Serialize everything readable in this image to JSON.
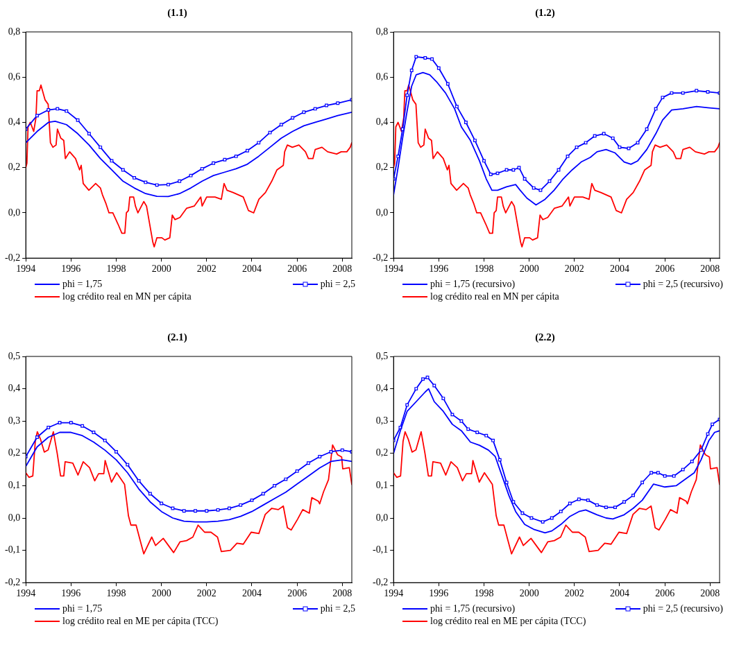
{
  "chart_data": [
    {
      "type": "line",
      "title": "(1.1)",
      "xlim": [
        1994,
        2008.42
      ],
      "xticks": [
        1994,
        1996,
        1998,
        2000,
        2002,
        2004,
        2006,
        2008
      ],
      "ylim": [
        -0.2,
        0.8
      ],
      "yticks": [
        {
          "value": -0.2,
          "label": "-0,2"
        },
        {
          "value": 0,
          "label": "0,0"
        },
        {
          "value": 0.2,
          "label": "0,2"
        },
        {
          "value": 0.4,
          "label": "0,4"
        },
        {
          "value": 0.6,
          "label": "0,6"
        },
        {
          "value": 0.8,
          "label": "0,8"
        }
      ],
      "grid": false,
      "legend": "bottom",
      "series": [
        {
          "name": "phi = 1,75",
          "color": "#0000ff",
          "marker": "none",
          "x": [
            1994.0,
            1994.5,
            1995.0,
            1995.3,
            1995.8,
            1996.3,
            1996.8,
            1997.3,
            1997.8,
            1998.3,
            1998.8,
            1999.3,
            1999.8,
            2000.3,
            2000.8,
            2001.3,
            2001.8,
            2002.3,
            2002.8,
            2003.3,
            2003.8,
            2004.3,
            2004.8,
            2005.3,
            2005.8,
            2006.3,
            2006.8,
            2007.3,
            2007.8,
            2008.42
          ],
          "values": [
            0.31,
            0.36,
            0.4,
            0.405,
            0.39,
            0.35,
            0.3,
            0.24,
            0.19,
            0.14,
            0.11,
            0.085,
            0.073,
            0.072,
            0.085,
            0.11,
            0.14,
            0.165,
            0.18,
            0.195,
            0.215,
            0.25,
            0.29,
            0.33,
            0.36,
            0.385,
            0.4,
            0.415,
            0.43,
            0.445
          ]
        },
        {
          "name": "phi = 2,5",
          "color": "#0000ff",
          "marker": "square",
          "x": [
            1994.0,
            1994.5,
            1995.0,
            1995.4,
            1995.8,
            1996.3,
            1996.8,
            1997.3,
            1997.8,
            1998.3,
            1998.8,
            1999.3,
            1999.8,
            2000.3,
            2000.8,
            2001.3,
            2001.8,
            2002.3,
            2002.8,
            2003.3,
            2003.8,
            2004.3,
            2004.8,
            2005.3,
            2005.8,
            2006.3,
            2006.8,
            2007.3,
            2007.8,
            2008.42
          ],
          "values": [
            0.37,
            0.43,
            0.455,
            0.46,
            0.45,
            0.41,
            0.35,
            0.29,
            0.23,
            0.19,
            0.155,
            0.135,
            0.123,
            0.125,
            0.14,
            0.165,
            0.195,
            0.22,
            0.235,
            0.25,
            0.275,
            0.31,
            0.355,
            0.39,
            0.42,
            0.445,
            0.46,
            0.475,
            0.485,
            0.5
          ]
        },
        {
          "name": "log crédito real en MN per cápita",
          "color": "#ff0000",
          "marker": "none",
          "x": [
            1994.0,
            1994.05,
            1994.1,
            1994.2,
            1994.35,
            1994.45,
            1994.5,
            1994.6,
            1994.67,
            1994.85,
            1994.99,
            1995.09,
            1995.2,
            1995.34,
            1995.4,
            1995.55,
            1995.68,
            1995.75,
            1995.94,
            1996.2,
            1996.38,
            1996.45,
            1996.54,
            1996.79,
            1997.09,
            1997.3,
            1997.39,
            1997.55,
            1997.68,
            1997.85,
            1998.08,
            1998.25,
            1998.38,
            1998.45,
            1998.54,
            1998.6,
            1998.77,
            1998.85,
            1998.96,
            1999.22,
            1999.34,
            1999.62,
            1999.68,
            1999.8,
            2000.02,
            2000.15,
            2000.37,
            2000.48,
            2000.6,
            2000.82,
            2001.11,
            2001.45,
            2001.74,
            2001.8,
            2002.0,
            2002.37,
            2002.65,
            2002.77,
            2002.9,
            2003.17,
            2003.62,
            2003.85,
            2004.08,
            2004.31,
            2004.6,
            2004.88,
            2005.11,
            2005.39,
            2005.45,
            2005.57,
            2005.79,
            2006.08,
            2006.37,
            2006.5,
            2006.7,
            2006.8,
            2007.1,
            2007.35,
            2007.75,
            2007.95,
            2008.2,
            2008.35,
            2008.42
          ],
          "values": [
            0.2,
            0.22,
            0.38,
            0.4,
            0.36,
            0.42,
            0.54,
            0.54,
            0.565,
            0.5,
            0.48,
            0.31,
            0.29,
            0.3,
            0.37,
            0.33,
            0.32,
            0.24,
            0.27,
            0.24,
            0.19,
            0.21,
            0.13,
            0.1,
            0.13,
            0.11,
            0.08,
            0.04,
            0.0,
            0.0,
            -0.05,
            -0.09,
            -0.09,
            0.0,
            0.01,
            0.07,
            0.07,
            0.03,
            0.0,
            0.05,
            0.03,
            -0.13,
            -0.15,
            -0.11,
            -0.11,
            -0.12,
            -0.11,
            -0.01,
            -0.03,
            -0.02,
            0.02,
            0.03,
            0.07,
            0.03,
            0.07,
            0.07,
            0.06,
            0.13,
            0.1,
            0.09,
            0.07,
            0.01,
            0.0,
            0.06,
            0.09,
            0.14,
            0.19,
            0.21,
            0.27,
            0.3,
            0.29,
            0.3,
            0.27,
            0.24,
            0.24,
            0.28,
            0.29,
            0.27,
            0.26,
            0.27,
            0.27,
            0.29,
            0.31
          ]
        }
      ]
    },
    {
      "type": "line",
      "title": "(1.2)",
      "xlim": [
        1994,
        2008.42
      ],
      "xticks": [
        1994,
        1996,
        1998,
        2000,
        2002,
        2004,
        2006,
        2008
      ],
      "ylim": [
        -0.2,
        0.8
      ],
      "yticks": [
        {
          "value": -0.2,
          "label": "-0,2"
        },
        {
          "value": 0,
          "label": "0,0"
        },
        {
          "value": 0.2,
          "label": "0,2"
        },
        {
          "value": 0.4,
          "label": "0,4"
        },
        {
          "value": 0.6,
          "label": "0,6"
        },
        {
          "value": 0.8,
          "label": "0,8"
        }
      ],
      "grid": false,
      "legend": "bottom",
      "series": [
        {
          "name": "phi = 1,75 (recursivo)",
          "color": "#0000ff",
          "marker": "none",
          "x": [
            1994.0,
            1994.2,
            1994.4,
            1994.6,
            1994.8,
            1995.0,
            1995.3,
            1995.6,
            1995.9,
            1996.3,
            1996.7,
            1997.0,
            1997.4,
            1997.8,
            1998.1,
            1998.35,
            1998.6,
            1999.0,
            1999.4,
            1999.6,
            1999.9,
            2000.3,
            2000.7,
            2001.1,
            2001.5,
            2001.9,
            2002.3,
            2002.7,
            2003.0,
            2003.4,
            2003.8,
            2004.2,
            2004.5,
            2004.8,
            2005.2,
            2005.6,
            2005.9,
            2006.3,
            2006.8,
            2007.4,
            2007.9,
            2008.42
          ],
          "values": [
            0.08,
            0.2,
            0.33,
            0.45,
            0.56,
            0.61,
            0.62,
            0.61,
            0.58,
            0.53,
            0.46,
            0.38,
            0.32,
            0.23,
            0.15,
            0.1,
            0.1,
            0.115,
            0.125,
            0.1,
            0.065,
            0.035,
            0.06,
            0.1,
            0.15,
            0.19,
            0.225,
            0.245,
            0.27,
            0.28,
            0.265,
            0.225,
            0.215,
            0.23,
            0.28,
            0.35,
            0.41,
            0.455,
            0.46,
            0.47,
            0.465,
            0.46
          ]
        },
        {
          "name": "phi = 2,5 (recursivo)",
          "color": "#0000ff",
          "marker": "square",
          "x": [
            1994.0,
            1994.2,
            1994.4,
            1994.6,
            1994.8,
            1995.0,
            1995.4,
            1995.7,
            1996.0,
            1996.4,
            1996.8,
            1997.2,
            1997.6,
            1998.0,
            1998.3,
            1998.6,
            1999.0,
            1999.3,
            1999.55,
            1999.8,
            2000.2,
            2000.5,
            2000.9,
            2001.3,
            2001.7,
            2002.1,
            2002.5,
            2002.9,
            2003.3,
            2003.7,
            2004.0,
            2004.4,
            2004.8,
            2005.2,
            2005.6,
            2005.9,
            2006.3,
            2006.8,
            2007.4,
            2007.9,
            2008.42
          ],
          "values": [
            0.15,
            0.25,
            0.37,
            0.52,
            0.63,
            0.69,
            0.685,
            0.68,
            0.64,
            0.57,
            0.47,
            0.4,
            0.32,
            0.23,
            0.17,
            0.175,
            0.19,
            0.19,
            0.2,
            0.15,
            0.11,
            0.1,
            0.14,
            0.19,
            0.25,
            0.29,
            0.31,
            0.34,
            0.35,
            0.33,
            0.29,
            0.285,
            0.31,
            0.37,
            0.46,
            0.51,
            0.53,
            0.53,
            0.54,
            0.535,
            0.53
          ]
        },
        {
          "name": "log crédito real en MN per cápita",
          "color": "#ff0000",
          "marker": "none",
          "x": [
            1994.0,
            1994.05,
            1994.1,
            1994.2,
            1994.35,
            1994.45,
            1994.5,
            1994.6,
            1994.67,
            1994.85,
            1994.99,
            1995.09,
            1995.2,
            1995.34,
            1995.4,
            1995.55,
            1995.68,
            1995.75,
            1995.94,
            1996.2,
            1996.38,
            1996.45,
            1996.54,
            1996.79,
            1997.09,
            1997.3,
            1997.39,
            1997.55,
            1997.68,
            1997.85,
            1998.08,
            1998.25,
            1998.38,
            1998.45,
            1998.54,
            1998.6,
            1998.77,
            1998.85,
            1998.96,
            1999.22,
            1999.34,
            1999.62,
            1999.68,
            1999.8,
            2000.02,
            2000.15,
            2000.37,
            2000.48,
            2000.6,
            2000.82,
            2001.11,
            2001.45,
            2001.74,
            2001.8,
            2002.0,
            2002.37,
            2002.65,
            2002.77,
            2002.9,
            2003.17,
            2003.62,
            2003.85,
            2004.08,
            2004.31,
            2004.6,
            2004.88,
            2005.11,
            2005.39,
            2005.45,
            2005.57,
            2005.79,
            2006.08,
            2006.37,
            2006.5,
            2006.7,
            2006.8,
            2007.1,
            2007.35,
            2007.75,
            2007.95,
            2008.2,
            2008.35,
            2008.42
          ],
          "values": [
            0.2,
            0.22,
            0.38,
            0.4,
            0.36,
            0.42,
            0.54,
            0.54,
            0.565,
            0.5,
            0.48,
            0.31,
            0.29,
            0.3,
            0.37,
            0.33,
            0.32,
            0.24,
            0.27,
            0.24,
            0.19,
            0.21,
            0.13,
            0.1,
            0.13,
            0.11,
            0.08,
            0.04,
            0.0,
            0.0,
            -0.05,
            -0.09,
            -0.09,
            0.0,
            0.01,
            0.07,
            0.07,
            0.03,
            0.0,
            0.05,
            0.03,
            -0.13,
            -0.15,
            -0.11,
            -0.11,
            -0.12,
            -0.11,
            -0.01,
            -0.03,
            -0.02,
            0.02,
            0.03,
            0.07,
            0.03,
            0.07,
            0.07,
            0.06,
            0.13,
            0.1,
            0.09,
            0.07,
            0.01,
            0.0,
            0.06,
            0.09,
            0.14,
            0.19,
            0.21,
            0.27,
            0.3,
            0.29,
            0.3,
            0.27,
            0.24,
            0.24,
            0.28,
            0.29,
            0.27,
            0.26,
            0.27,
            0.27,
            0.29,
            0.31
          ]
        }
      ]
    },
    {
      "type": "line",
      "title": "(2.1)",
      "xlim": [
        1994,
        2008.42
      ],
      "xticks": [
        1994,
        1996,
        1998,
        2000,
        2002,
        2004,
        2006,
        2008
      ],
      "ylim": [
        -0.2,
        0.5
      ],
      "yticks": [
        {
          "value": -0.2,
          "label": "-0,2"
        },
        {
          "value": -0.1,
          "label": "-0,1"
        },
        {
          "value": 0,
          "label": "0,0"
        },
        {
          "value": 0.1,
          "label": "0,1"
        },
        {
          "value": 0.2,
          "label": "0,2"
        },
        {
          "value": 0.3,
          "label": "0,3"
        },
        {
          "value": 0.4,
          "label": "0,4"
        },
        {
          "value": 0.5,
          "label": "0,5"
        }
      ],
      "grid": false,
      "legend": "bottom",
      "series": [
        {
          "name": "phi = 1,75",
          "color": "#0000ff",
          "marker": "none",
          "x": [
            1994.0,
            1994.5,
            1995.0,
            1995.5,
            1996.0,
            1996.5,
            1997.0,
            1997.5,
            1998.0,
            1998.5,
            1999.0,
            1999.5,
            2000.0,
            2000.5,
            2001.0,
            2001.5,
            2002.0,
            2002.5,
            2003.0,
            2003.5,
            2004.0,
            2004.5,
            2005.0,
            2005.5,
            2006.0,
            2006.5,
            2007.0,
            2007.5,
            2008.0,
            2008.42
          ],
          "values": [
            0.16,
            0.22,
            0.25,
            0.265,
            0.265,
            0.255,
            0.235,
            0.21,
            0.18,
            0.14,
            0.09,
            0.05,
            0.02,
            0.0,
            -0.01,
            -0.012,
            -0.012,
            -0.01,
            -0.005,
            0.005,
            0.02,
            0.04,
            0.06,
            0.08,
            0.105,
            0.13,
            0.155,
            0.175,
            0.18,
            0.175
          ]
        },
        {
          "name": "phi = 2,5",
          "color": "#0000ff",
          "marker": "square",
          "x": [
            1994.0,
            1994.5,
            1995.0,
            1995.5,
            1996.0,
            1996.5,
            1997.0,
            1997.5,
            1998.0,
            1998.5,
            1999.0,
            1999.5,
            2000.0,
            2000.5,
            2001.0,
            2001.5,
            2002.0,
            2002.5,
            2003.0,
            2003.5,
            2004.0,
            2004.5,
            2005.0,
            2005.5,
            2006.0,
            2006.5,
            2007.0,
            2007.5,
            2008.0,
            2008.42
          ],
          "values": [
            0.19,
            0.25,
            0.28,
            0.295,
            0.295,
            0.285,
            0.265,
            0.24,
            0.205,
            0.165,
            0.115,
            0.075,
            0.045,
            0.03,
            0.022,
            0.022,
            0.022,
            0.025,
            0.03,
            0.04,
            0.055,
            0.075,
            0.1,
            0.12,
            0.145,
            0.17,
            0.19,
            0.205,
            0.21,
            0.205
          ]
        },
        {
          "name": "log crédito real en ME per cápita (TCC)",
          "color": "#ff0000",
          "marker": "none",
          "x": [
            1994.0,
            1994.14,
            1994.31,
            1994.42,
            1994.51,
            1994.65,
            1994.82,
            1994.99,
            1995.22,
            1995.39,
            1995.54,
            1995.68,
            1995.74,
            1996.08,
            1996.31,
            1996.54,
            1996.82,
            1997.05,
            1997.22,
            1997.45,
            1997.51,
            1997.79,
            1998.02,
            1998.37,
            1998.54,
            1998.65,
            1998.88,
            1999.05,
            1999.22,
            1999.57,
            1999.74,
            2000.08,
            2000.31,
            2000.54,
            2000.82,
            2001.11,
            2001.39,
            2001.62,
            2001.91,
            2002.19,
            2002.48,
            2002.65,
            2003.05,
            2003.34,
            2003.62,
            2003.97,
            2004.31,
            2004.59,
            2004.88,
            2005.17,
            2005.39,
            2005.57,
            2005.74,
            2006.02,
            2006.25,
            2006.54,
            2006.65,
            2006.94,
            2007.0,
            2007.17,
            2007.39,
            2007.57,
            2007.79,
            2007.97,
            2008.02,
            2008.31,
            2008.42
          ],
          "values": [
            0.14,
            0.126,
            0.13,
            0.237,
            0.267,
            0.244,
            0.204,
            0.211,
            0.267,
            0.2,
            0.13,
            0.13,
            0.174,
            0.17,
            0.133,
            0.174,
            0.156,
            0.115,
            0.137,
            0.137,
            0.178,
            0.111,
            0.14,
            0.104,
            0.007,
            -0.022,
            -0.022,
            -0.067,
            -0.111,
            -0.059,
            -0.085,
            -0.063,
            -0.085,
            -0.107,
            -0.074,
            -0.07,
            -0.059,
            -0.022,
            -0.044,
            -0.044,
            -0.059,
            -0.104,
            -0.1,
            -0.078,
            -0.081,
            -0.044,
            -0.048,
            0.011,
            0.03,
            0.026,
            0.037,
            -0.03,
            -0.037,
            -0.004,
            0.026,
            0.015,
            0.063,
            0.052,
            0.044,
            0.081,
            0.119,
            0.226,
            0.196,
            0.189,
            0.152,
            0.156,
            0.104
          ]
        }
      ]
    },
    {
      "type": "line",
      "title": "(2.2)",
      "xlim": [
        1994,
        2008.42
      ],
      "xticks": [
        1994,
        1996,
        1998,
        2000,
        2002,
        2004,
        2006,
        2008
      ],
      "ylim": [
        -0.2,
        0.5
      ],
      "yticks": [
        {
          "value": -0.2,
          "label": "-0,2"
        },
        {
          "value": -0.1,
          "label": "-0,1"
        },
        {
          "value": 0,
          "label": "0,0"
        },
        {
          "value": 0.1,
          "label": "0,1"
        },
        {
          "value": 0.2,
          "label": "0,2"
        },
        {
          "value": 0.3,
          "label": "0,3"
        },
        {
          "value": 0.4,
          "label": "0,4"
        },
        {
          "value": 0.5,
          "label": "0,5"
        }
      ],
      "grid": false,
      "legend": "bottom",
      "series": [
        {
          "name": "phi = 1,75 (recursivo)",
          "color": "#0000ff",
          "marker": "none",
          "x": [
            1994.0,
            1994.3,
            1994.6,
            1995.0,
            1995.4,
            1995.55,
            1995.8,
            1996.2,
            1996.6,
            1997.0,
            1997.4,
            1997.8,
            1998.2,
            1998.5,
            1998.8,
            1999.1,
            1999.4,
            1999.8,
            2000.2,
            2000.7,
            2001.0,
            2001.4,
            2001.8,
            2002.2,
            2002.5,
            2003.0,
            2003.4,
            2003.7,
            2004.2,
            2004.6,
            2005.0,
            2005.5,
            2006.0,
            2006.5,
            2007.0,
            2007.3,
            2007.6,
            2007.95,
            2008.2,
            2008.42
          ],
          "values": [
            0.2,
            0.27,
            0.33,
            0.36,
            0.39,
            0.4,
            0.36,
            0.33,
            0.29,
            0.27,
            0.235,
            0.225,
            0.21,
            0.19,
            0.13,
            0.07,
            0.02,
            -0.02,
            -0.035,
            -0.046,
            -0.04,
            -0.02,
            0.005,
            0.02,
            0.025,
            0.01,
            0.0,
            -0.003,
            0.01,
            0.03,
            0.055,
            0.105,
            0.096,
            0.1,
            0.125,
            0.14,
            0.18,
            0.24,
            0.265,
            0.27
          ]
        },
        {
          "name": "phi = 2,5 (recursivo)",
          "color": "#0000ff",
          "marker": "square",
          "x": [
            1994.0,
            1994.3,
            1994.6,
            1995.0,
            1995.3,
            1995.5,
            1995.8,
            1996.2,
            1996.6,
            1997.0,
            1997.3,
            1997.7,
            1998.1,
            1998.4,
            1998.7,
            1999.0,
            1999.3,
            1999.7,
            2000.1,
            2000.6,
            2001.0,
            2001.4,
            2001.8,
            2002.2,
            2002.6,
            2003.0,
            2003.4,
            2003.8,
            2004.2,
            2004.6,
            2005.0,
            2005.4,
            2005.7,
            2006.0,
            2006.4,
            2006.8,
            2007.2,
            2007.6,
            2007.9,
            2008.1,
            2008.42
          ],
          "values": [
            0.24,
            0.28,
            0.35,
            0.4,
            0.43,
            0.435,
            0.41,
            0.37,
            0.32,
            0.3,
            0.275,
            0.265,
            0.255,
            0.24,
            0.18,
            0.11,
            0.05,
            0.015,
            0.0,
            -0.012,
            0.0,
            0.02,
            0.045,
            0.058,
            0.055,
            0.04,
            0.033,
            0.033,
            0.05,
            0.07,
            0.11,
            0.14,
            0.14,
            0.13,
            0.13,
            0.15,
            0.175,
            0.21,
            0.26,
            0.29,
            0.305
          ]
        },
        {
          "name": "log crédito real en ME per cápita (TCC)",
          "color": "#ff0000",
          "marker": "none",
          "x": [
            1994.0,
            1994.14,
            1994.31,
            1994.42,
            1994.51,
            1994.65,
            1994.82,
            1994.99,
            1995.22,
            1995.39,
            1995.54,
            1995.68,
            1995.74,
            1996.08,
            1996.31,
            1996.54,
            1996.82,
            1997.05,
            1997.22,
            1997.45,
            1997.51,
            1997.79,
            1998.02,
            1998.37,
            1998.54,
            1998.65,
            1998.88,
            1999.05,
            1999.22,
            1999.57,
            1999.74,
            2000.08,
            2000.31,
            2000.54,
            2000.82,
            2001.11,
            2001.39,
            2001.62,
            2001.91,
            2002.19,
            2002.48,
            2002.65,
            2003.05,
            2003.34,
            2003.62,
            2003.97,
            2004.31,
            2004.59,
            2004.88,
            2005.17,
            2005.39,
            2005.57,
            2005.74,
            2006.02,
            2006.25,
            2006.54,
            2006.65,
            2006.94,
            2007.0,
            2007.17,
            2007.39,
            2007.57,
            2007.79,
            2007.97,
            2008.02,
            2008.31,
            2008.42
          ],
          "values": [
            0.14,
            0.126,
            0.13,
            0.237,
            0.267,
            0.244,
            0.204,
            0.211,
            0.267,
            0.2,
            0.13,
            0.13,
            0.174,
            0.17,
            0.133,
            0.174,
            0.156,
            0.115,
            0.137,
            0.137,
            0.178,
            0.111,
            0.14,
            0.104,
            0.007,
            -0.022,
            -0.022,
            -0.067,
            -0.111,
            -0.059,
            -0.085,
            -0.063,
            -0.085,
            -0.107,
            -0.074,
            -0.07,
            -0.059,
            -0.022,
            -0.044,
            -0.044,
            -0.059,
            -0.104,
            -0.1,
            -0.078,
            -0.081,
            -0.044,
            -0.048,
            0.011,
            0.03,
            0.026,
            0.037,
            -0.03,
            -0.037,
            -0.004,
            0.026,
            0.015,
            0.063,
            0.052,
            0.044,
            0.081,
            0.119,
            0.226,
            0.196,
            0.189,
            0.152,
            0.156,
            0.104
          ]
        }
      ]
    }
  ]
}
